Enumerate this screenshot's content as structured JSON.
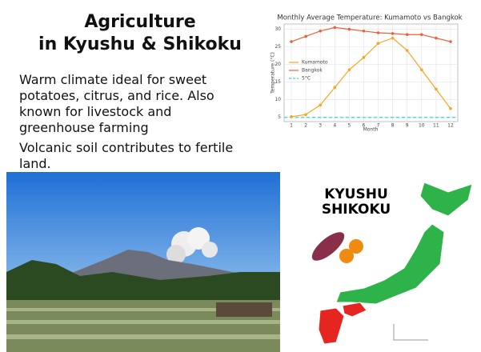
{
  "title_lines": [
    "Agriculture",
    "in Kyushu & Shikoku"
  ],
  "bullets": [
    "Warm climate ideal for sweet potatoes, citrus, and rice. Also known for livestock and greenhouse farming",
    "Volcanic soil contributes to fertile land."
  ],
  "map_labels": [
    "KYUSHU",
    "SHIKOKU"
  ],
  "chart_data": {
    "type": "line",
    "title": "Monthly Average Temperature: Kumamoto vs Bangkok",
    "x_label": "Month",
    "y_label": "Temperature (°C)",
    "x": [
      1,
      2,
      3,
      4,
      5,
      6,
      7,
      8,
      9,
      10,
      11,
      12
    ],
    "xlim": [
      0.5,
      12.5
    ],
    "xticks": [
      1,
      2,
      3,
      4,
      5,
      6,
      7,
      8,
      9,
      10,
      11,
      12
    ],
    "ylim": [
      3.8,
      31.5
    ],
    "yticks": [
      5,
      10,
      15,
      20,
      25,
      30
    ],
    "grid": true,
    "legend": "upper left",
    "series": [
      {
        "name": "Kumamoto",
        "color": "#f5a623",
        "values": [
          5.2,
          5.8,
          8.5,
          13.5,
          18.5,
          22,
          26,
          27.5,
          24,
          18.5,
          13,
          7.5
        ]
      },
      {
        "name": "Bangkok",
        "color": "#e8633a",
        "values": [
          26.5,
          28,
          29.5,
          30.5,
          30,
          29.5,
          29,
          28.8,
          28.5,
          28.5,
          27.5,
          26.5
        ]
      }
    ],
    "reference": {
      "name": "5°C",
      "value": 5,
      "color": "#2fd4e6"
    }
  }
}
